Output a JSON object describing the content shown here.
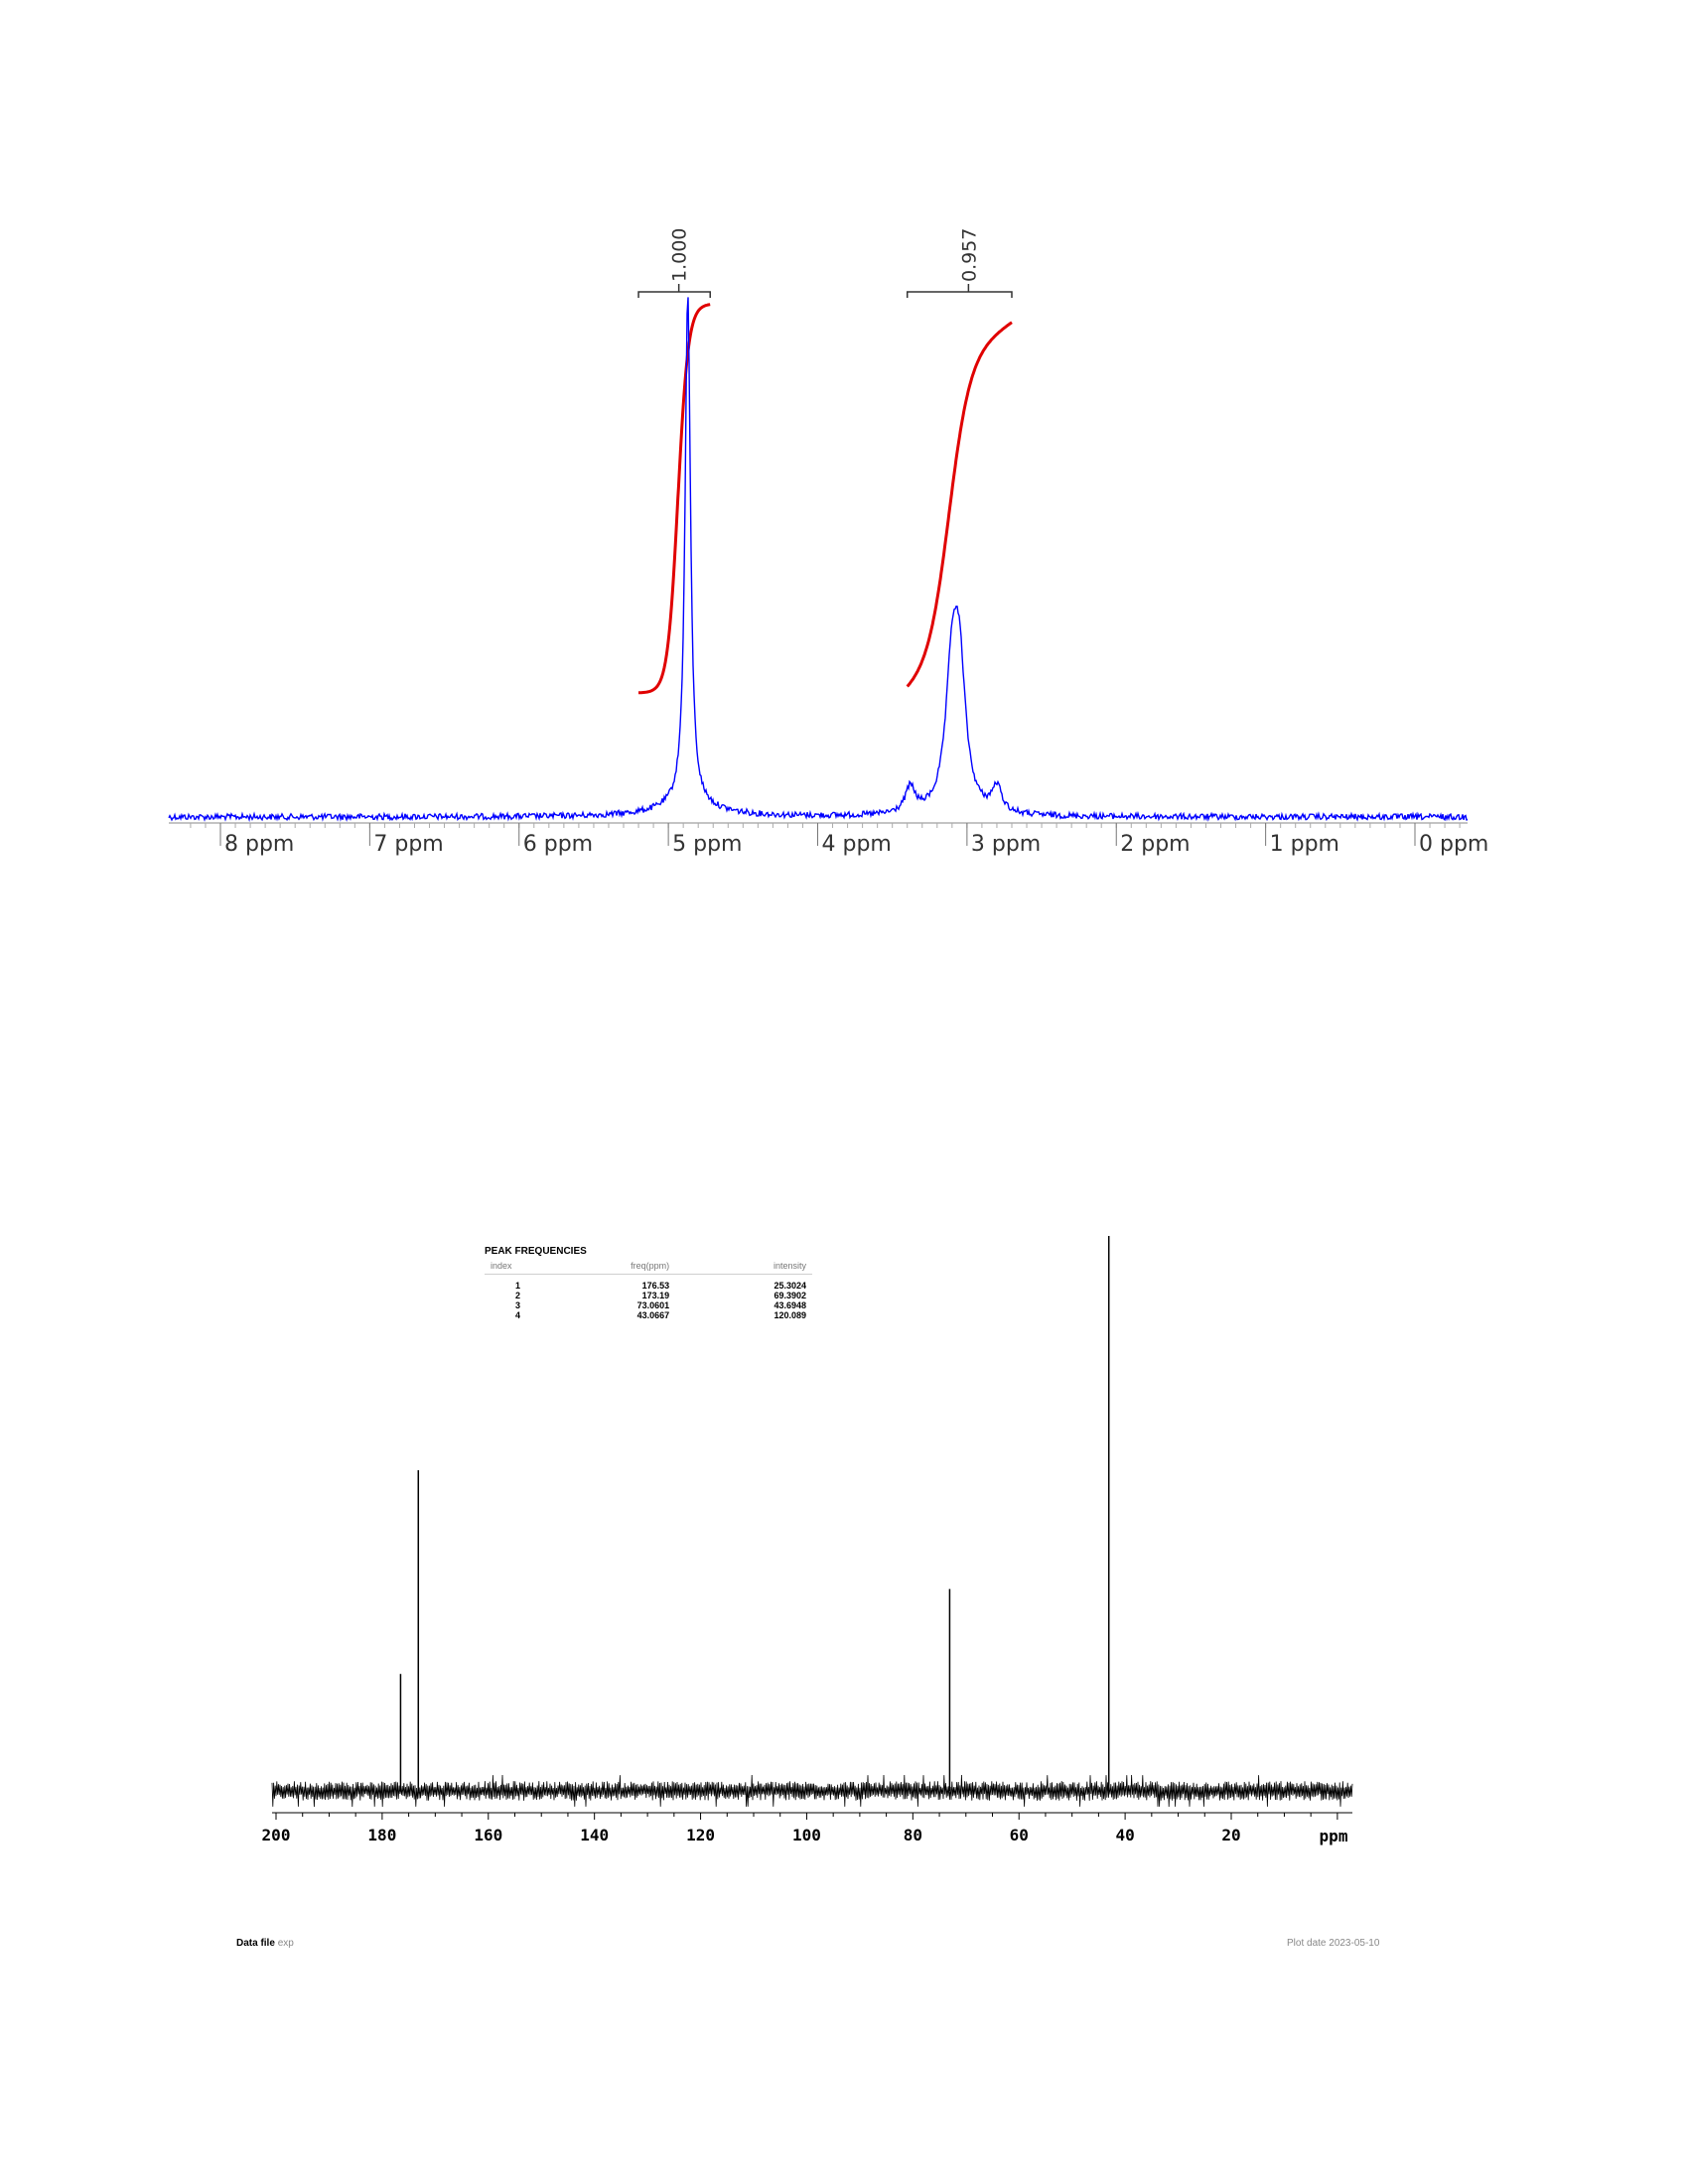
{
  "chart_data": [
    {
      "type": "line",
      "spectrum": "1H NMR",
      "x_axis": {
        "ticks": [
          8,
          7,
          6,
          5,
          4,
          3,
          2,
          1,
          0
        ],
        "tick_labels": [
          "8 ppm",
          "7 ppm",
          "6 ppm",
          "5 ppm",
          "4 ppm",
          "3 ppm",
          "2 ppm",
          "1 ppm",
          "0 ppm"
        ],
        "range": [
          8.25,
          -0.35
        ],
        "reversed": true
      },
      "peaks": [
        {
          "ppm": 4.87,
          "height": 1.0
        },
        {
          "ppm": 3.08,
          "height": 0.46
        },
        {
          "ppm": 3.38,
          "height": 0.05
        },
        {
          "ppm": 2.8,
          "height": 0.05
        }
      ],
      "series_color": "#0000ff",
      "integral_color": "#e00000",
      "integrals": [
        {
          "from": 5.2,
          "to": 4.72,
          "value": "1.000",
          "label_ppm": 4.93
        },
        {
          "from": 3.4,
          "to": 2.7,
          "value": "0.957",
          "label_ppm": 2.99
        }
      ]
    },
    {
      "type": "line",
      "spectrum": "13C NMR",
      "x_axis": {
        "ticks": [
          200,
          180,
          160,
          140,
          120,
          100,
          80,
          60,
          40,
          20
        ],
        "tick_labels": [
          "200",
          "180",
          "160",
          "140",
          "120",
          "100",
          "80",
          "60",
          "40",
          "20"
        ],
        "unit_label": "ppm",
        "range": [
          200,
          0
        ],
        "reversed": true
      },
      "peaks": [
        {
          "ppm": 176.53,
          "intensity": 25.3024
        },
        {
          "ppm": 173.19,
          "intensity": 69.3902
        },
        {
          "ppm": 73.0601,
          "intensity": 43.6948
        },
        {
          "ppm": 43.0667,
          "intensity": 120.089
        }
      ],
      "series_color": "#000000"
    }
  ],
  "peak_table": {
    "title": "PEAK FREQUENCIES",
    "headers": [
      "index",
      "freq(ppm)",
      "intensity"
    ],
    "rows": [
      [
        "1",
        "176.53",
        "25.3024"
      ],
      [
        "2",
        "173.19",
        "69.3902"
      ],
      [
        "3",
        "73.0601",
        "43.6948"
      ],
      [
        "4",
        "43.0667",
        "120.089"
      ]
    ]
  },
  "footer": {
    "data_file_label": "Data file",
    "data_file_value": "exp",
    "plot_date": "Plot date 2023-05-10"
  }
}
